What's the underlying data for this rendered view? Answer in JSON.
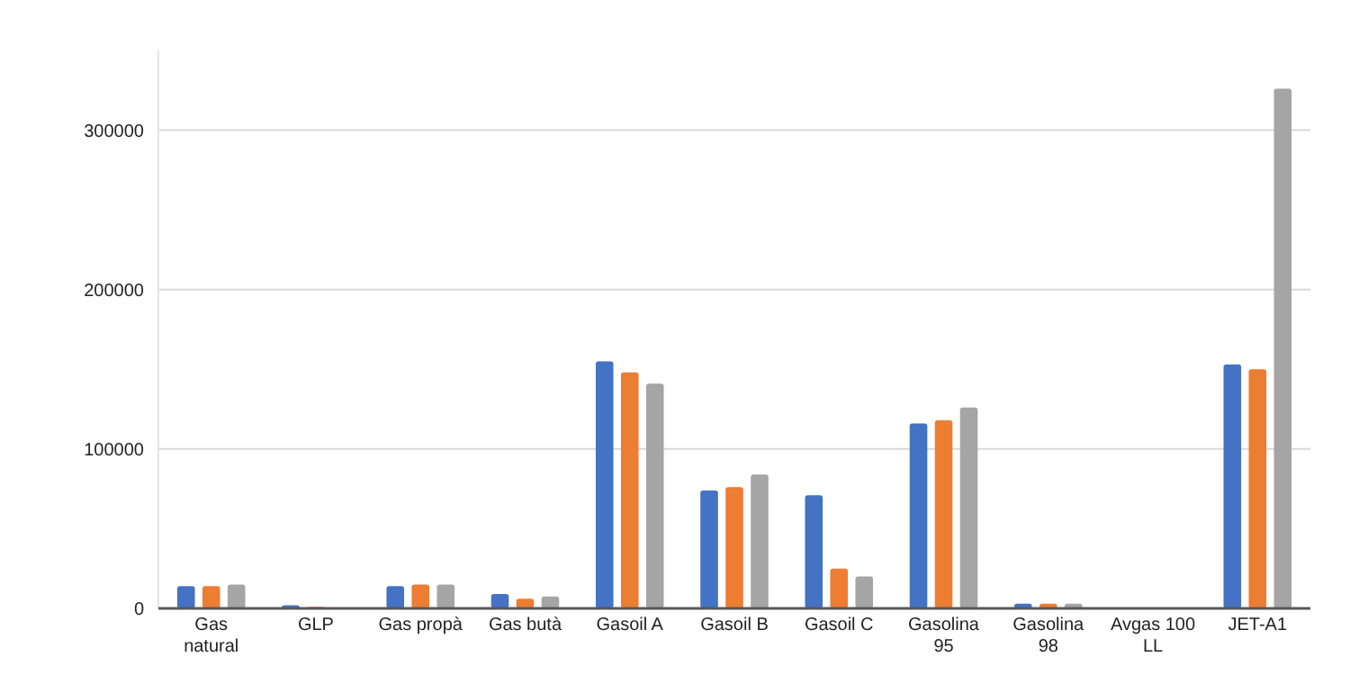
{
  "chart_data": {
    "type": "bar",
    "categories": [
      "Gas natural",
      "GLP",
      "Gas propà",
      "Gas butà",
      "Gasoil A",
      "Gasoil B",
      "Gasoil C",
      "Gasolina 95",
      "Gasolina 98",
      "Avgas 100 LL",
      "JET-A1"
    ],
    "series": [
      {
        "color": "#4472c4",
        "values": [
          14000,
          2000,
          14000,
          9000,
          155000,
          74000,
          71000,
          116000,
          3000,
          0,
          153000
        ]
      },
      {
        "color": "#ed7d31",
        "values": [
          14000,
          1000,
          15000,
          6000,
          148000,
          76000,
          25000,
          118000,
          3000,
          0,
          150000
        ]
      },
      {
        "color": "#a5a5a5",
        "values": [
          15000,
          0,
          15000,
          7500,
          141000,
          84000,
          20000,
          126000,
          3000,
          0,
          326000
        ]
      }
    ],
    "ylim": [
      0,
      350000
    ],
    "yticks": [
      0,
      100000,
      200000,
      300000
    ],
    "grid": "y"
  }
}
